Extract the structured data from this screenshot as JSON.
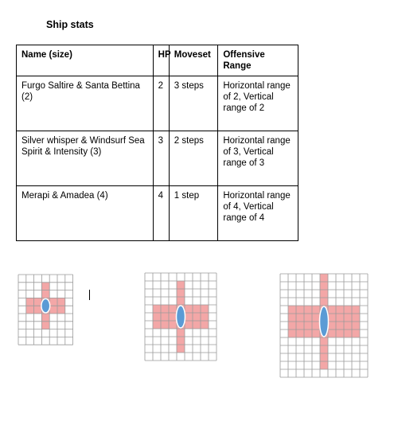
{
  "title": "Ship stats",
  "table": {
    "headers": {
      "name": "Name (size)",
      "hp": "HP",
      "moveset": "Moveset",
      "range": "Offensive Range"
    },
    "rows": [
      {
        "name": "Furgo Saltire & Santa Bettina (2)",
        "hp": "2",
        "moveset": "3 steps",
        "range": "Horizontal range of 2, Vertical range of 2"
      },
      {
        "name": "Silver whisper & Windsurf Sea Spirit & Intensity (3)",
        "hp": "3",
        "moveset": "2 steps",
        "range": "Horizontal range of 3, Vertical range of 3"
      },
      {
        "name": "Merapi & Amadea (4)",
        "hp": "4",
        "moveset": "1 step",
        "range": "Horizontal range of 4, Vertical range of 4"
      }
    ]
  },
  "diagrams": [
    {
      "cols": 7,
      "rows": 9,
      "ship_size": 2,
      "range": 2
    },
    {
      "cols": 9,
      "rows": 11,
      "ship_size": 3,
      "range": 3
    },
    {
      "cols": 11,
      "rows": 13,
      "ship_size": 4,
      "range": 4
    }
  ],
  "colors": {
    "range_fill": "#f3a7a7",
    "ship_fill": "#5b9bd5",
    "grid_line": "#9a9a9a"
  }
}
